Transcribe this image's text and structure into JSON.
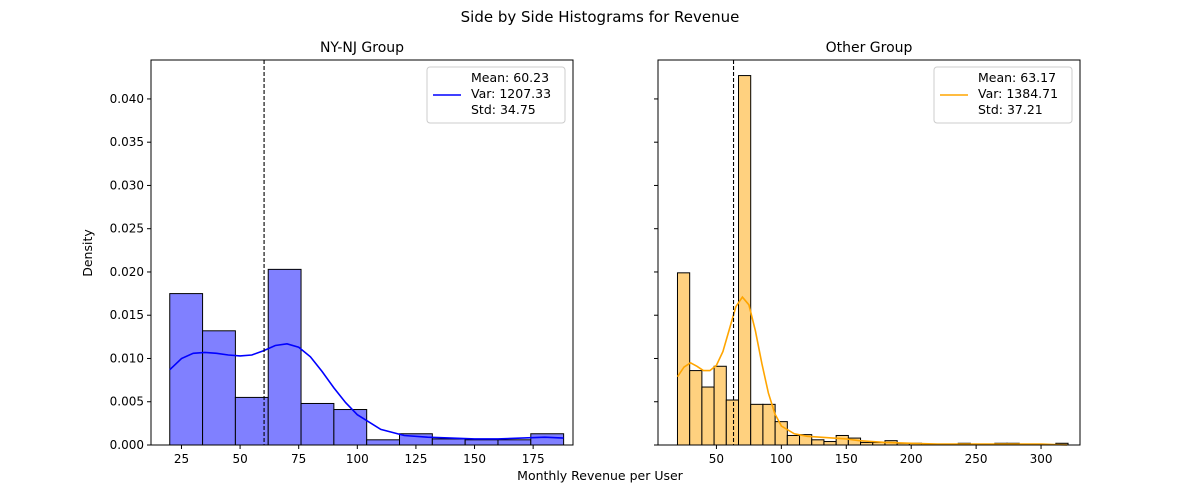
{
  "suptitle": "Side by Side Histograms for Revenue",
  "shared_xlabel": "Monthly Revenue per User",
  "shared_ylabel": "Density",
  "chart_data": [
    {
      "type": "bar",
      "title": "NY-NJ Group",
      "color": "#0000ff",
      "bar_color": "#8080ff",
      "xlim": [
        12,
        192
      ],
      "ylim": [
        0,
        0.0445
      ],
      "xticks": [
        25,
        50,
        75,
        100,
        125,
        150,
        175
      ],
      "yticks": [
        0.0,
        0.005,
        0.01,
        0.015,
        0.02,
        0.025,
        0.03,
        0.035,
        0.04
      ],
      "ytick_labels": [
        "0.000",
        "0.005",
        "0.010",
        "0.015",
        "0.020",
        "0.025",
        "0.030",
        "0.035",
        "0.040"
      ],
      "bins": [
        {
          "x0": 20,
          "x1": 34,
          "density": 0.0175
        },
        {
          "x0": 34,
          "x1": 48,
          "density": 0.0132
        },
        {
          "x0": 48,
          "x1": 62,
          "density": 0.0055
        },
        {
          "x0": 62,
          "x1": 76,
          "density": 0.0203
        },
        {
          "x0": 76,
          "x1": 90,
          "density": 0.0048
        },
        {
          "x0": 90,
          "x1": 104,
          "density": 0.0041
        },
        {
          "x0": 104,
          "x1": 118,
          "density": 0.0006
        },
        {
          "x0": 118,
          "x1": 132,
          "density": 0.0013
        },
        {
          "x0": 132,
          "x1": 146,
          "density": 0.0007
        },
        {
          "x0": 146,
          "x1": 160,
          "density": 0.0006
        },
        {
          "x0": 160,
          "x1": 174,
          "density": 0.0006
        },
        {
          "x0": 174,
          "x1": 188,
          "density": 0.0013
        }
      ],
      "kde": [
        [
          20,
          0.0087
        ],
        [
          25,
          0.01
        ],
        [
          30,
          0.0106
        ],
        [
          35,
          0.0107
        ],
        [
          40,
          0.0106
        ],
        [
          45,
          0.0104
        ],
        [
          50,
          0.0103
        ],
        [
          55,
          0.0104
        ],
        [
          60,
          0.0109
        ],
        [
          65,
          0.0115
        ],
        [
          70,
          0.0117
        ],
        [
          75,
          0.0113
        ],
        [
          80,
          0.0102
        ],
        [
          85,
          0.0085
        ],
        [
          90,
          0.0066
        ],
        [
          95,
          0.0049
        ],
        [
          100,
          0.0035
        ],
        [
          110,
          0.0018
        ],
        [
          120,
          0.0011
        ],
        [
          130,
          0.0009
        ],
        [
          140,
          0.0008
        ],
        [
          150,
          0.0007
        ],
        [
          160,
          0.0007
        ],
        [
          170,
          0.0008
        ],
        [
          180,
          0.0009
        ],
        [
          188,
          0.0008
        ]
      ],
      "mean_line": 60.23,
      "legend": {
        "mean": "Mean: 60.23",
        "var": "Var: 1207.33",
        "std": "Std: 34.75"
      }
    },
    {
      "type": "bar",
      "title": "Other Group",
      "color": "#ffa500",
      "bar_color": "#ffd17f",
      "xlim": [
        5,
        330
      ],
      "ylim": [
        0,
        0.0445
      ],
      "xticks": [
        50,
        100,
        150,
        200,
        250,
        300
      ],
      "yticks": [
        0.0,
        0.005,
        0.01,
        0.015,
        0.02,
        0.025,
        0.03,
        0.035,
        0.04
      ],
      "ytick_labels": [
        "",
        "",
        "",
        "",
        "",
        "",
        "",
        "",
        ""
      ],
      "bins": [
        {
          "x0": 20,
          "x1": 29.4,
          "density": 0.0199
        },
        {
          "x0": 29.4,
          "x1": 38.8,
          "density": 0.0086
        },
        {
          "x0": 38.8,
          "x1": 48.2,
          "density": 0.0067
        },
        {
          "x0": 48.2,
          "x1": 57.6,
          "density": 0.0091
        },
        {
          "x0": 57.6,
          "x1": 67.0,
          "density": 0.0052
        },
        {
          "x0": 67.0,
          "x1": 76.4,
          "density": 0.0427
        },
        {
          "x0": 76.4,
          "x1": 85.8,
          "density": 0.0047
        },
        {
          "x0": 85.8,
          "x1": 95.2,
          "density": 0.0047
        },
        {
          "x0": 95.2,
          "x1": 104.6,
          "density": 0.0027
        },
        {
          "x0": 104.6,
          "x1": 114.0,
          "density": 0.0011
        },
        {
          "x0": 114.0,
          "x1": 123.4,
          "density": 0.0012
        },
        {
          "x0": 123.4,
          "x1": 132.8,
          "density": 0.0006
        },
        {
          "x0": 132.8,
          "x1": 142.2,
          "density": 0.0004
        },
        {
          "x0": 142.2,
          "x1": 151.6,
          "density": 0.0011
        },
        {
          "x0": 151.6,
          "x1": 161.0,
          "density": 0.0008
        },
        {
          "x0": 161.0,
          "x1": 170.4,
          "density": 0.0003
        },
        {
          "x0": 170.4,
          "x1": 179.8,
          "density": 0.0003
        },
        {
          "x0": 179.8,
          "x1": 189.2,
          "density": 0.0005
        },
        {
          "x0": 189.2,
          "x1": 198.6,
          "density": 0.0002
        },
        {
          "x0": 198.6,
          "x1": 208.0,
          "density": 0.0002
        },
        {
          "x0": 208.0,
          "x1": 217.4,
          "density": 0.0
        },
        {
          "x0": 217.4,
          "x1": 226.8,
          "density": 0.0
        },
        {
          "x0": 226.8,
          "x1": 236.2,
          "density": 0.0
        },
        {
          "x0": 236.2,
          "x1": 245.6,
          "density": 0.0002
        },
        {
          "x0": 245.6,
          "x1": 255.0,
          "density": 0.0
        },
        {
          "x0": 255.0,
          "x1": 264.4,
          "density": 0.0
        },
        {
          "x0": 264.4,
          "x1": 273.8,
          "density": 0.0002
        },
        {
          "x0": 273.8,
          "x1": 283.2,
          "density": 0.0002
        },
        {
          "x0": 283.2,
          "x1": 292.6,
          "density": 0.0
        },
        {
          "x0": 292.6,
          "x1": 302.0,
          "density": 0.0
        },
        {
          "x0": 302.0,
          "x1": 311.4,
          "density": 0.0
        },
        {
          "x0": 311.4,
          "x1": 320.8,
          "density": 0.0002
        }
      ],
      "kde": [
        [
          20,
          0.0079
        ],
        [
          25,
          0.009
        ],
        [
          30,
          0.0095
        ],
        [
          35,
          0.0091
        ],
        [
          40,
          0.0086
        ],
        [
          45,
          0.0086
        ],
        [
          50,
          0.0092
        ],
        [
          55,
          0.0108
        ],
        [
          60,
          0.0134
        ],
        [
          65,
          0.016
        ],
        [
          70,
          0.0171
        ],
        [
          75,
          0.0162
        ],
        [
          80,
          0.0132
        ],
        [
          85,
          0.0094
        ],
        [
          90,
          0.006
        ],
        [
          95,
          0.0036
        ],
        [
          100,
          0.0022
        ],
        [
          110,
          0.0013
        ],
        [
          120,
          0.001
        ],
        [
          130,
          0.0009
        ],
        [
          140,
          0.0008
        ],
        [
          150,
          0.0007
        ],
        [
          160,
          0.0005
        ],
        [
          170,
          0.0004
        ],
        [
          180,
          0.0003
        ],
        [
          200,
          0.0002
        ],
        [
          220,
          0.0001
        ],
        [
          240,
          0.0001
        ],
        [
          260,
          0.0001
        ],
        [
          280,
          0.0001
        ],
        [
          300,
          0.0001
        ],
        [
          320,
          0.0
        ]
      ],
      "mean_line": 63.17,
      "legend": {
        "mean": "Mean: 63.17",
        "var": "Var: 1384.71",
        "std": "Std: 37.21"
      }
    }
  ]
}
